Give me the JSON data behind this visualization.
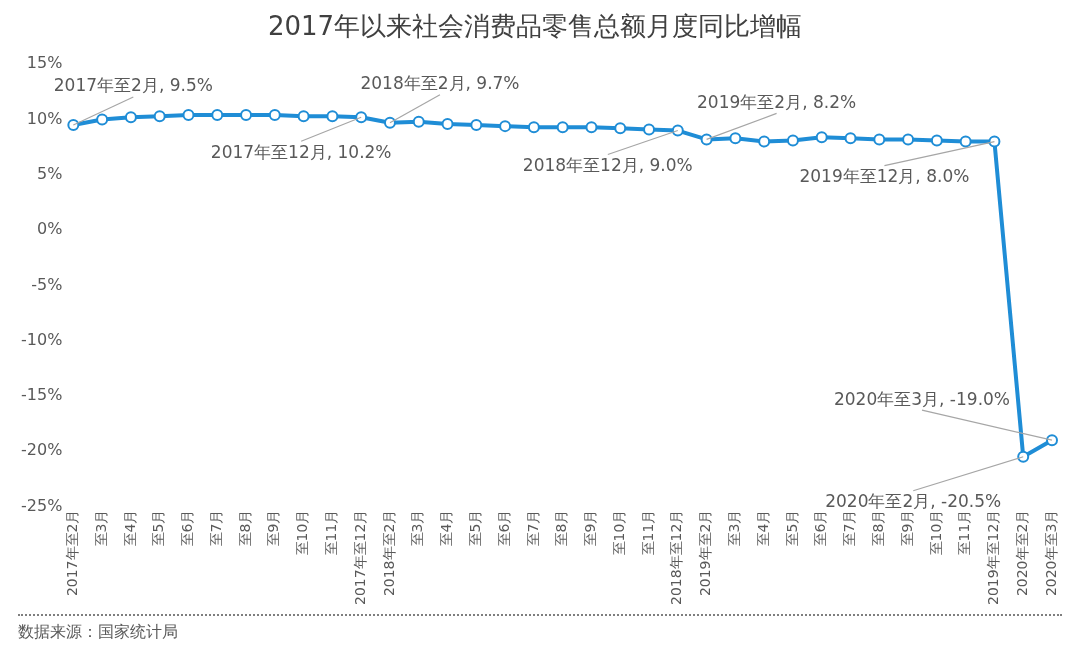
{
  "chart_data": {
    "type": "line",
    "title": "2017年以来社会消费品零售总额月度同比增幅",
    "categories": [
      "2017年至2月",
      "至3月",
      "至4月",
      "至5月",
      "至6月",
      "至7月",
      "至8月",
      "至9月",
      "至10月",
      "至11月",
      "2017年至12月",
      "2018年至2月",
      "至3月",
      "至4月",
      "至5月",
      "至6月",
      "至7月",
      "至8月",
      "至9月",
      "至10月",
      "至11月",
      "2018年至12月",
      "2019年至2月",
      "至3月",
      "至4月",
      "至5月",
      "至6月",
      "至7月",
      "至8月",
      "至9月",
      "至10月",
      "至11月",
      "2019年至12月",
      "2020年至2月",
      "2020年至3月"
    ],
    "series": [
      {
        "color": "#1f8dd6",
        "values": [
          9.5,
          10.0,
          10.2,
          10.3,
          10.4,
          10.4,
          10.4,
          10.4,
          10.3,
          10.3,
          10.2,
          9.7,
          9.8,
          9.6,
          9.5,
          9.4,
          9.3,
          9.3,
          9.3,
          9.2,
          9.1,
          9.0,
          8.2,
          8.3,
          8.0,
          8.1,
          8.4,
          8.3,
          8.2,
          8.2,
          8.1,
          8.0,
          8.0,
          -20.5,
          -19.0
        ]
      }
    ],
    "ylim": [
      -25,
      15
    ],
    "yticks": [
      {
        "value": -25,
        "label": "-25%"
      },
      {
        "value": -20,
        "label": "-20%"
      },
      {
        "value": -15,
        "label": "-15%"
      },
      {
        "value": -10,
        "label": "-10%"
      },
      {
        "value": -5,
        "label": "-5%"
      },
      {
        "value": 0,
        "label": "0%"
      },
      {
        "value": 5,
        "label": "5%"
      },
      {
        "value": 10,
        "label": "10%"
      },
      {
        "value": 15,
        "label": "15%"
      }
    ],
    "grid": false,
    "legend": false,
    "marker": "circle",
    "line_style": "solid",
    "annotations": [
      {
        "text": "2017年至2月, 9.5%",
        "x": "2017年至2月",
        "y": 9.5
      },
      {
        "text": "2017年至12月, 10.2%",
        "x": "2017年至12月",
        "y": 10.2
      },
      {
        "text": "2018年至2月, 9.7%",
        "x": "2018年至2月",
        "y": 9.7
      },
      {
        "text": "2018年至12月, 9.0%",
        "x": "2018年至12月",
        "y": 9.0
      },
      {
        "text": "2019年至2月, 8.2%",
        "x": "2019年至2月",
        "y": 8.2
      },
      {
        "text": "2019年至12月, 8.0%",
        "x": "2019年至12月",
        "y": 8.0
      },
      {
        "text": "2020年至3月, -19.0%",
        "x": "2020年至3月",
        "y": -19.0
      },
      {
        "text": "2020年至2月, -20.5%",
        "x": "2020年至2月",
        "y": -20.5
      },
      "数据来源：国家统计局"
    ]
  }
}
